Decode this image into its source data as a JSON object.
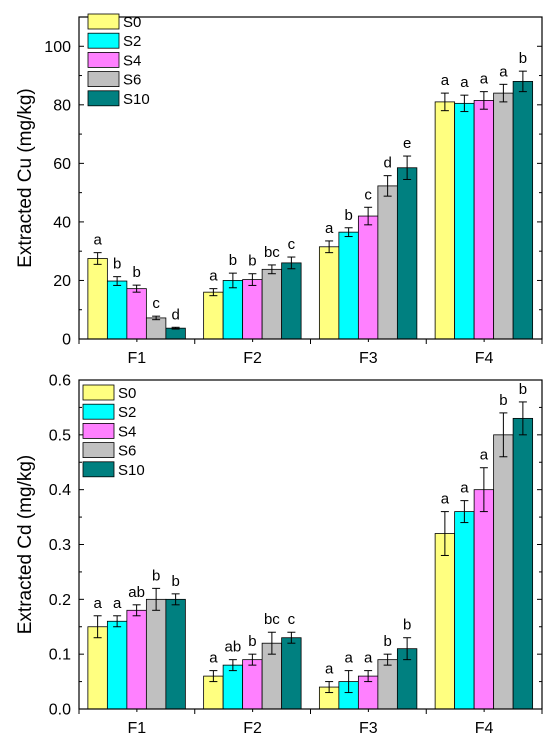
{
  "colors": {
    "S0": "#ffff80",
    "S2": "#00ffff",
    "S4": "#ff80ff",
    "S6": "#c0c0c0",
    "S10": "#008080"
  },
  "chart_data": [
    {
      "type": "bar",
      "title": "",
      "xlabel": "",
      "ylabel": "Extracted Cu (mg/kg)",
      "categories": [
        "F1",
        "F2",
        "F3",
        "F4"
      ],
      "ylim": [
        0,
        110
      ],
      "yticks": [
        0,
        20,
        40,
        60,
        80,
        100
      ],
      "ytick_labels": [
        "0",
        "20",
        "40",
        "60",
        "80",
        "100"
      ],
      "grid": false,
      "legend_position": "top-left",
      "series": [
        {
          "name": "S0",
          "values": [
            27.5,
            16,
            31.5,
            81
          ],
          "errors": [
            2,
            1.2,
            2,
            3
          ],
          "letters": [
            "a",
            "a",
            "a",
            "a"
          ]
        },
        {
          "name": "S2",
          "values": [
            19.8,
            20,
            36.5,
            80.5
          ],
          "errors": [
            1.5,
            2.5,
            1.5,
            2.8
          ],
          "letters": [
            "b",
            "b",
            "b",
            "a"
          ]
        },
        {
          "name": "S4",
          "values": [
            17.2,
            20.3,
            42,
            81.5
          ],
          "errors": [
            1.2,
            2,
            3,
            3
          ],
          "letters": [
            "b",
            "b",
            "c",
            "a"
          ]
        },
        {
          "name": "S6",
          "values": [
            7.2,
            23.8,
            52.3,
            84
          ],
          "errors": [
            0.6,
            1.5,
            3.5,
            3
          ],
          "letters": [
            "c",
            "bc",
            "d",
            "a"
          ]
        },
        {
          "name": "S10",
          "values": [
            3.7,
            26,
            58.5,
            88
          ],
          "errors": [
            0.3,
            2,
            4,
            3.5
          ],
          "letters": [
            "d",
            "c",
            "e",
            "b"
          ]
        }
      ]
    },
    {
      "type": "bar",
      "title": "",
      "xlabel": "",
      "ylabel": "Extracted Cd  (mg/kg)",
      "categories": [
        "F1",
        "F2",
        "F3",
        "F4"
      ],
      "ylim": [
        0,
        0.6
      ],
      "yticks": [
        0,
        0.1,
        0.2,
        0.3,
        0.4,
        0.5,
        0.6
      ],
      "ytick_labels": [
        "0.0",
        "0.1",
        "0.2",
        "0.3",
        "0.4",
        "0.5",
        "0.6"
      ],
      "grid": false,
      "legend_position": "top-left",
      "series": [
        {
          "name": "S0",
          "values": [
            0.15,
            0.06,
            0.04,
            0.32
          ],
          "errors": [
            0.02,
            0.01,
            0.01,
            0.04
          ],
          "letters": [
            "a",
            "a",
            "a",
            "a"
          ]
        },
        {
          "name": "S2",
          "values": [
            0.16,
            0.08,
            0.05,
            0.36
          ],
          "errors": [
            0.01,
            0.01,
            0.02,
            0.02
          ],
          "letters": [
            "a",
            "ab",
            "a",
            "a"
          ]
        },
        {
          "name": "S4",
          "values": [
            0.18,
            0.09,
            0.06,
            0.4
          ],
          "errors": [
            0.01,
            0.01,
            0.01,
            0.04
          ],
          "letters": [
            "ab",
            "b",
            "a",
            "a"
          ]
        },
        {
          "name": "S6",
          "values": [
            0.2,
            0.12,
            0.09,
            0.5
          ],
          "errors": [
            0.02,
            0.02,
            0.01,
            0.04
          ],
          "letters": [
            "b",
            "bc",
            "b",
            "b"
          ]
        },
        {
          "name": "S10",
          "values": [
            0.2,
            0.13,
            0.11,
            0.53
          ],
          "errors": [
            0.01,
            0.01,
            0.02,
            0.03
          ],
          "letters": [
            "b",
            "c",
            "b",
            "b"
          ]
        }
      ]
    }
  ]
}
